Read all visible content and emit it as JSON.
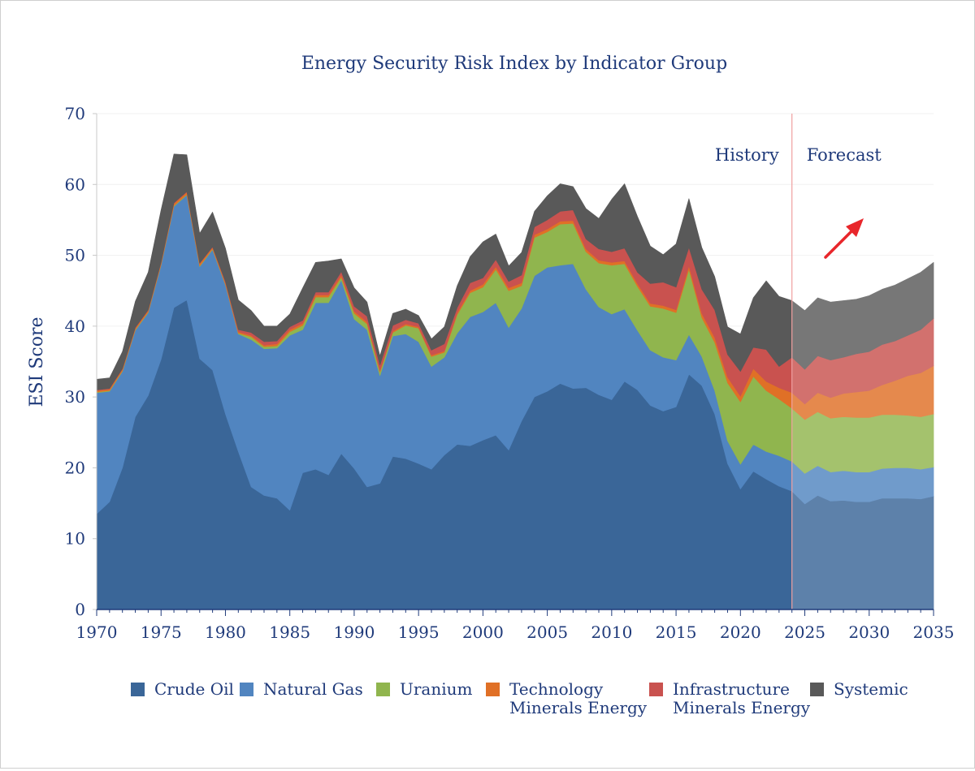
{
  "chart_data": {
    "type": "area",
    "title": "Energy Security Risk Index by Indicator Group",
    "ylabel": "ESI Score",
    "xlabel": "",
    "xlim": [
      1970,
      2035
    ],
    "ylim": [
      0,
      70
    ],
    "x_ticks": [
      1970,
      1975,
      1980,
      1985,
      1990,
      1995,
      2000,
      2005,
      2010,
      2015,
      2020,
      2025,
      2030,
      2035
    ],
    "y_ticks": [
      0,
      10,
      20,
      30,
      40,
      50,
      60,
      70
    ],
    "grid": true,
    "stacked": true,
    "legend_position": "bottom",
    "history_label": "History",
    "forecast_label": "Forecast",
    "forecast_start": 2024,
    "x": [
      1970,
      1971,
      1972,
      1973,
      1974,
      1975,
      1976,
      1977,
      1978,
      1979,
      1980,
      1981,
      1982,
      1983,
      1984,
      1985,
      1986,
      1987,
      1988,
      1989,
      1990,
      1991,
      1992,
      1993,
      1994,
      1995,
      1996,
      1997,
      1998,
      1999,
      2000,
      2001,
      2002,
      2003,
      2004,
      2005,
      2006,
      2007,
      2008,
      2009,
      2010,
      2011,
      2012,
      2013,
      2014,
      2015,
      2016,
      2017,
      2018,
      2019,
      2020,
      2021,
      2022,
      2023,
      2024,
      2025,
      2026,
      2027,
      2028,
      2029,
      2030,
      2031,
      2032,
      2033,
      2034,
      2035
    ],
    "series": [
      {
        "name": "Crude Oil",
        "color": "#3a6698",
        "values": [
          13.5,
          15.2,
          20,
          27.2,
          30.2,
          35.3,
          42.6,
          43.7,
          35.4,
          33.8,
          27.6,
          22.3,
          17.3,
          16.1,
          15.7,
          14,
          19.3,
          19.8,
          19,
          22,
          19.9,
          17.3,
          17.8,
          21.6,
          21.3,
          20.6,
          19.8,
          21.8,
          23.3,
          23.1,
          23.9,
          24.6,
          22.5,
          26.6,
          30,
          30.8,
          31.9,
          31.2,
          31.3,
          30.3,
          29.6,
          32.2,
          31,
          28.8,
          28,
          28.6,
          33.2,
          31.6,
          27.6,
          20.6,
          17,
          19.5,
          18.4,
          17.4,
          16.7,
          14.9,
          16.1,
          15.3,
          15.4,
          15.2,
          15.2,
          15.7,
          15.7,
          15.7,
          15.6,
          16
        ]
      },
      {
        "name": "Natural Gas",
        "color": "#5185c0",
        "values": [
          17.1,
          15.6,
          13.6,
          12.2,
          11.7,
          13.3,
          14.3,
          14.8,
          13,
          17,
          18.2,
          16.6,
          20.8,
          20.7,
          21.2,
          24.7,
          20.2,
          23.5,
          24.3,
          24.5,
          21.1,
          22.2,
          15.2,
          17,
          17.6,
          17.2,
          14.5,
          13.8,
          15.7,
          18.2,
          18.1,
          18.7,
          17.3,
          15.9,
          17.1,
          17.5,
          16.7,
          17.6,
          13.9,
          12.4,
          12.1,
          10.2,
          8.4,
          7.8,
          7.6,
          6.6,
          5.6,
          4.1,
          3.3,
          3.2,
          3.5,
          3.8,
          3.9,
          4.3,
          4.2,
          4.3,
          4.2,
          4.1,
          4.2,
          4.2,
          4.2,
          4.2,
          4.3,
          4.3,
          4.2,
          4.1
        ]
      },
      {
        "name": "Uranium",
        "color": "#90b54e",
        "values": [
          0.1,
          0.1,
          0.1,
          0.1,
          0.1,
          0.1,
          0.1,
          0.1,
          0.1,
          0.1,
          0.1,
          0.1,
          0.4,
          0.3,
          0.3,
          0.5,
          0.6,
          0.8,
          0.8,
          0.4,
          0.8,
          0.8,
          0.5,
          0.5,
          1.2,
          1.9,
          1.4,
          0.7,
          2.6,
          3.4,
          3.5,
          4.7,
          5.2,
          3.2,
          5.4,
          5,
          5.8,
          5.7,
          5.3,
          6.2,
          6.9,
          6.4,
          6.2,
          6.2,
          6.9,
          6.7,
          9.2,
          5.5,
          6.8,
          8.2,
          8.8,
          9.6,
          8.6,
          8,
          7.5,
          7.6,
          7.6,
          7.6,
          7.6,
          7.7,
          7.7,
          7.6,
          7.5,
          7.4,
          7.4,
          7.5
        ]
      },
      {
        "name": "Technology Minerals Energy",
        "color": "#e07026",
        "values": [
          0.2,
          0.2,
          0.2,
          0.2,
          0.2,
          0.2,
          0.3,
          0.3,
          0.3,
          0.2,
          0.2,
          0.2,
          0.2,
          0.2,
          0.3,
          0.3,
          0.3,
          0.3,
          0.3,
          0.3,
          0.3,
          0.3,
          0.2,
          0.2,
          0.2,
          0.2,
          0.2,
          0.2,
          0.3,
          0.3,
          0.4,
          0.4,
          0.4,
          0.4,
          0.4,
          0.4,
          0.4,
          0.4,
          0.4,
          0.4,
          0.4,
          0.4,
          0.4,
          0.4,
          0.4,
          0.4,
          0.5,
          0.6,
          0.7,
          0.8,
          0.8,
          1.1,
          1.3,
          1.6,
          2.2,
          2.2,
          2.7,
          2.9,
          3.3,
          3.6,
          3.8,
          4.2,
          4.8,
          5.6,
          6.2,
          6.8
        ]
      },
      {
        "name": "Infrastructure Minerals Energy",
        "color": "#c9524f",
        "values": [
          0.1,
          0.1,
          0.1,
          0.1,
          0.1,
          0.1,
          0.1,
          0.1,
          0.1,
          0.1,
          0.2,
          0.3,
          0.4,
          0.5,
          0.4,
          0.4,
          0.4,
          0.4,
          0.4,
          0.5,
          0.7,
          0.8,
          0.8,
          0.8,
          0.6,
          0.5,
          0.7,
          1,
          0.7,
          1.1,
          0.9,
          1,
          0.9,
          1.1,
          1.1,
          1.3,
          1.4,
          1.5,
          1.4,
          1.6,
          1.5,
          1.8,
          1.6,
          2.8,
          3.3,
          3.2,
          2.6,
          3.4,
          3.9,
          3.2,
          3.5,
          3,
          4.5,
          3,
          5,
          4.9,
          5.2,
          5.3,
          5.1,
          5.4,
          5.5,
          5.7,
          5.6,
          5.7,
          6.1,
          6.7
        ]
      },
      {
        "name": "Systemic",
        "color": "#595959",
        "values": [
          1.5,
          1.5,
          2.4,
          3.7,
          5.3,
          7.4,
          6.9,
          5.2,
          4.2,
          4.9,
          4.7,
          4.2,
          3.1,
          2.2,
          2.1,
          1.8,
          4.6,
          4.2,
          4.4,
          1.8,
          2.6,
          2,
          1.3,
          1.7,
          1.5,
          1.1,
          1.6,
          2.4,
          3.1,
          3.7,
          5.1,
          3.6,
          2.2,
          3.2,
          2.2,
          3.4,
          3.9,
          3.3,
          4.3,
          4.3,
          7.4,
          9.1,
          7.9,
          5.3,
          3.9,
          6.1,
          6.9,
          5.9,
          4.7,
          3.9,
          5.3,
          7,
          9.7,
          9.9,
          8,
          8.3,
          8.2,
          8.2,
          8,
          7.7,
          7.9,
          7.8,
          7.9,
          8,
          8.1,
          7.9
        ]
      }
    ]
  }
}
